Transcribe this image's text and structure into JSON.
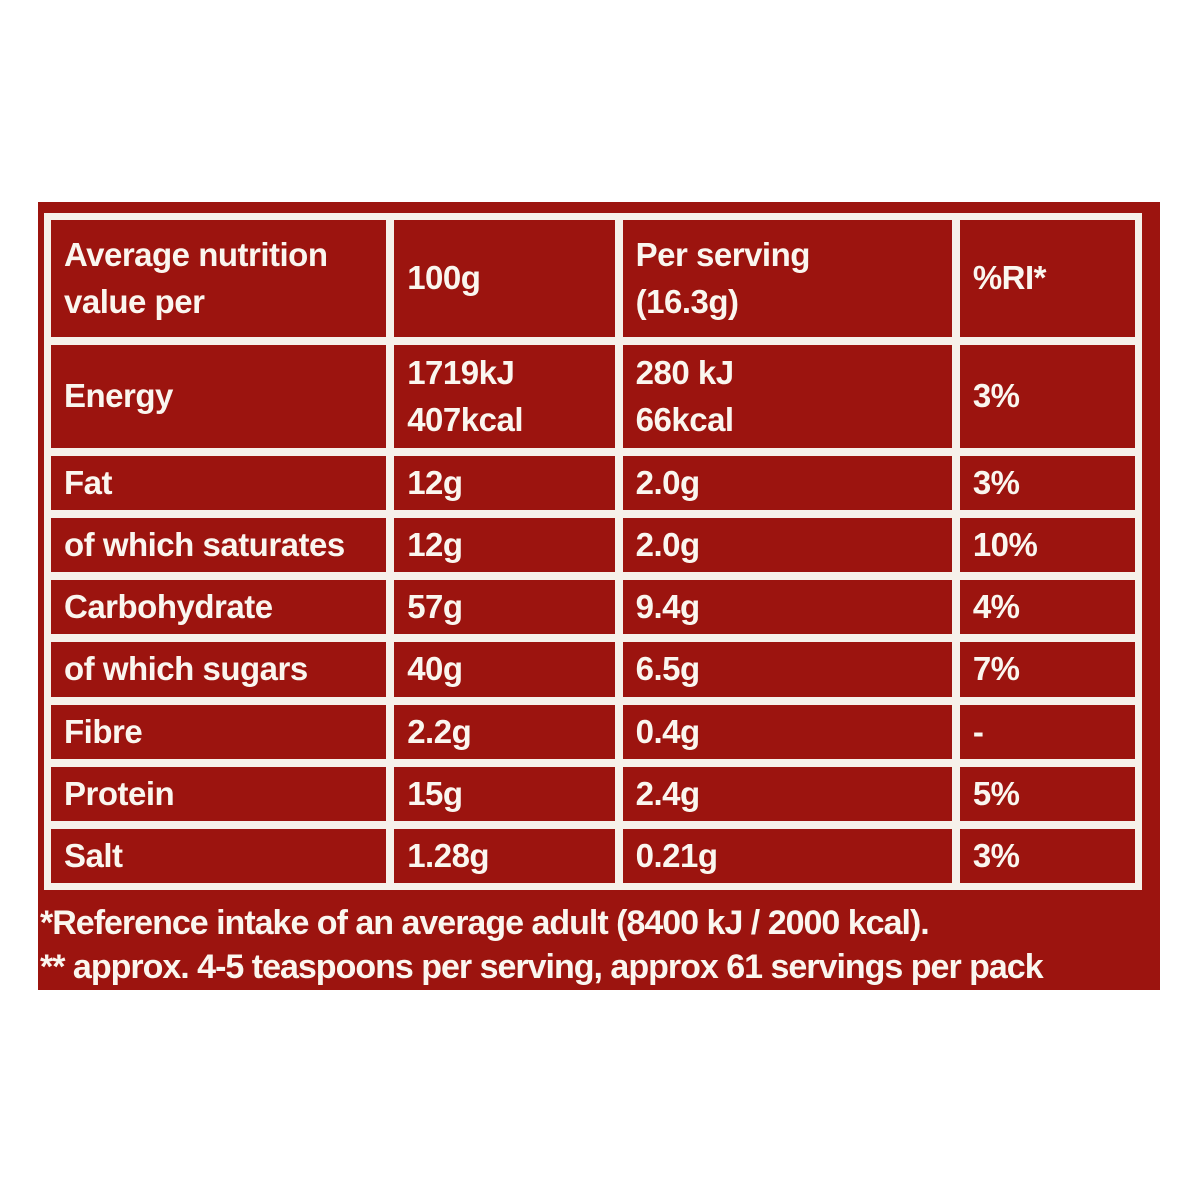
{
  "colors": {
    "page-bg": "#ffffff",
    "panel-red": "#9c140f",
    "off-white": "#f6f1ea",
    "text-white": "#faf6ef"
  },
  "table": {
    "header": [
      "Average nutrition\nvalue per",
      "100g",
      "Per serving\n(16.3g)",
      "%RI*"
    ],
    "rows": [
      {
        "label": "Energy",
        "per100": "1719kJ\n407kcal",
        "serving": "280 kJ\n66kcal",
        "ri": "3%"
      },
      {
        "label": "Fat",
        "per100": "12g",
        "serving": "2.0g",
        "ri": "3%"
      },
      {
        "label": "of which saturates",
        "per100": "12g",
        "serving": "2.0g",
        "ri": "10%"
      },
      {
        "label": "Carbohydrate",
        "per100": "57g",
        "serving": "9.4g",
        "ri": "4%"
      },
      {
        "label": "of which sugars",
        "per100": "40g",
        "serving": "6.5g",
        "ri": "7%"
      },
      {
        "label": "Fibre",
        "per100": "2.2g",
        "serving": "0.4g",
        "ri": "-"
      },
      {
        "label": "Protein",
        "per100": "15g",
        "serving": "2.4g",
        "ri": "5%"
      },
      {
        "label": "Salt",
        "per100": "1.28g",
        "serving": "0.21g",
        "ri": "3%"
      }
    ]
  },
  "footnotes": {
    "line1": "*Reference intake of an average adult (8400 kJ / 2000 kcal).",
    "line2": "** approx. 4-5 teaspoons per serving, approx 61 servings per pack"
  }
}
